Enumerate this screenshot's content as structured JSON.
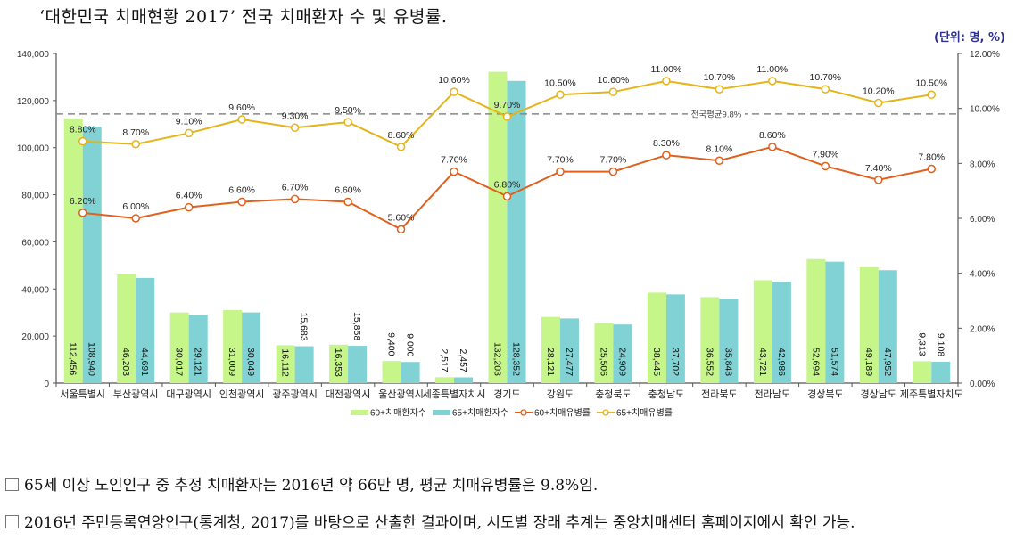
{
  "title": "‘대한민국 치매현황 2017’ 전국 치매환자 수 및 유병률.",
  "unit_label": "(단위: 명, %)",
  "notes": [
    "65세 이상 노인인구 중 추정 치매환자는 2016년 약 66만 명, 평균 치매유병률은 9.8%임.",
    "2016년 주민등록연앙인구(통계청, 2017)를 바탕으로 산출한 결과이며, 시도별 장래 추계는 중앙치매센터 홈페이지에서 확인 가능."
  ],
  "chart_data": {
    "type": "bar",
    "title": "‘대한민국 치매현황 2017’ 전국 치매환자 수 및 유병률",
    "xlabel": "",
    "ylabel": "명",
    "y2label": "%",
    "ylim": [
      0,
      140000
    ],
    "y2lim": [
      0,
      12
    ],
    "yticks": [
      "0",
      "20,000",
      "40,000",
      "60,000",
      "80,000",
      "100,000",
      "120,000",
      "140,000"
    ],
    "y2ticks": [
      "0.00%",
      "2.00%",
      "4.00%",
      "6.00%",
      "8.00%",
      "10.00%",
      "12.00%"
    ],
    "legend_position": "bottom",
    "categories": [
      "서울특별시",
      "부산광역시",
      "대구광역시",
      "인천광역시",
      "광주광역시",
      "대전광역시",
      "울산광역시",
      "세종특별자치시",
      "경기도",
      "강원도",
      "충청북도",
      "충청남도",
      "전라북도",
      "전라남도",
      "경상북도",
      "경상남도",
      "제주특별자치도"
    ],
    "series": [
      {
        "name": "60+치매환자수",
        "type": "bar",
        "axis": "left",
        "color": "#c6f58a",
        "values": [
          112456,
          46203,
          30017,
          31009,
          16112,
          16353,
          9400,
          2517,
          132203,
          28121,
          25506,
          38445,
          36552,
          43721,
          52694,
          49189,
          9313
        ],
        "labels": [
          "112,456",
          "46,203",
          "30,017",
          "31,009",
          "16,112",
          "16,353",
          "9,400",
          "2,517",
          "132,203",
          "28,121",
          "25,506",
          "38,445",
          "36,552",
          "43,721",
          "52,694",
          "49,189",
          "9,313"
        ]
      },
      {
        "name": "65+치매환자수",
        "type": "bar",
        "axis": "left",
        "color": "#80d2d4",
        "values": [
          108940,
          44691,
          29121,
          30049,
          15683,
          15858,
          9000,
          2457,
          128352,
          27477,
          24909,
          37702,
          35848,
          42986,
          51574,
          47952,
          9108
        ],
        "labels": [
          "108,940",
          "44,691",
          "29,121",
          "30,049",
          "15,683",
          "15,858",
          "9,000",
          "2,457",
          "128,352",
          "27,477",
          "24,909",
          "37,702",
          "35,848",
          "42,986",
          "51,574",
          "47,952",
          "9,108"
        ]
      },
      {
        "name": "60+치매유병률",
        "type": "line",
        "axis": "right",
        "color": "#e0601c",
        "values": [
          6.2,
          6.0,
          6.4,
          6.6,
          6.7,
          6.6,
          5.6,
          7.7,
          6.8,
          7.7,
          7.7,
          8.3,
          8.1,
          8.6,
          7.9,
          7.4,
          7.8
        ],
        "labels": [
          "6.20%",
          "6.00%",
          "6.40%",
          "6.60%",
          "6.70%",
          "6.60%",
          "5.60%",
          "7.70%",
          "6.80%",
          "7.70%",
          "7.70%",
          "8.30%",
          "8.10%",
          "8.60%",
          "7.90%",
          "7.40%",
          "7.80%"
        ]
      },
      {
        "name": "65+치매유병률",
        "type": "line",
        "axis": "right",
        "color": "#e6b419",
        "values": [
          8.8,
          8.7,
          9.1,
          9.6,
          9.3,
          9.5,
          8.6,
          10.6,
          9.7,
          10.5,
          10.6,
          11.0,
          10.7,
          11.0,
          10.7,
          10.2,
          10.5
        ],
        "labels": [
          "8.80%",
          "8.70%",
          "9.10%",
          "9.60%",
          "9.30%",
          "9.50%",
          "8.60%",
          "10.60%",
          "9.70%",
          "10.50%",
          "10.60%",
          "11.00%",
          "10.70%",
          "11.00%",
          "10.70%",
          "10.20%",
          "10.50%"
        ]
      }
    ],
    "reference_line": {
      "value": 9.8,
      "axis": "right",
      "label": "전국평균9.8%",
      "style": "dashed",
      "color": "#888888"
    },
    "grid": false
  }
}
